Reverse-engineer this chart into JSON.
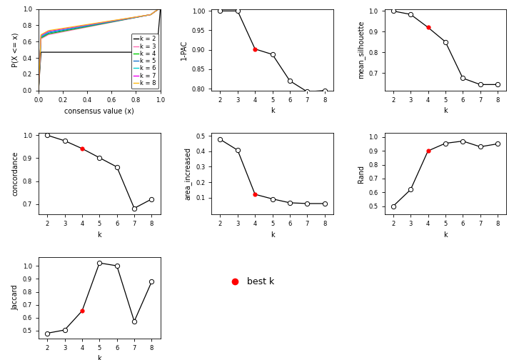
{
  "k_values": [
    2,
    3,
    4,
    5,
    6,
    7,
    8
  ],
  "best_k": 4,
  "pac_1pac": [
    1.0,
    1.0,
    0.902,
    0.888,
    0.82,
    0.792,
    0.795
  ],
  "mean_silhouette": [
    1.0,
    0.984,
    0.921,
    0.851,
    0.675,
    0.644,
    0.644
  ],
  "concordance": [
    1.0,
    0.976,
    0.942,
    0.902,
    0.862,
    0.682,
    0.722
  ],
  "area_increased": [
    0.478,
    0.408,
    0.121,
    0.091,
    0.066,
    0.061,
    0.061
  ],
  "rand": [
    0.5,
    0.62,
    0.9,
    0.955,
    0.971,
    0.93,
    0.951
  ],
  "jaccard": [
    0.48,
    0.505,
    0.652,
    1.023,
    1.001,
    0.572,
    0.878
  ],
  "ecdf_colors": [
    "#000000",
    "#FF6EB4",
    "#00CD00",
    "#1874CD",
    "#00CED1",
    "#EE00EE",
    "#FFB90F"
  ],
  "ecdf_labels": [
    "k = 2",
    "k = 3",
    "k = 4",
    "k = 5",
    "k = 6",
    "k = 7",
    "k = 8"
  ],
  "bg_color": "#FFFFFF",
  "dot_best_color": "#FF0000",
  "axis_fontsize": 7,
  "tick_fontsize": 6,
  "legend_fontsize": 6
}
